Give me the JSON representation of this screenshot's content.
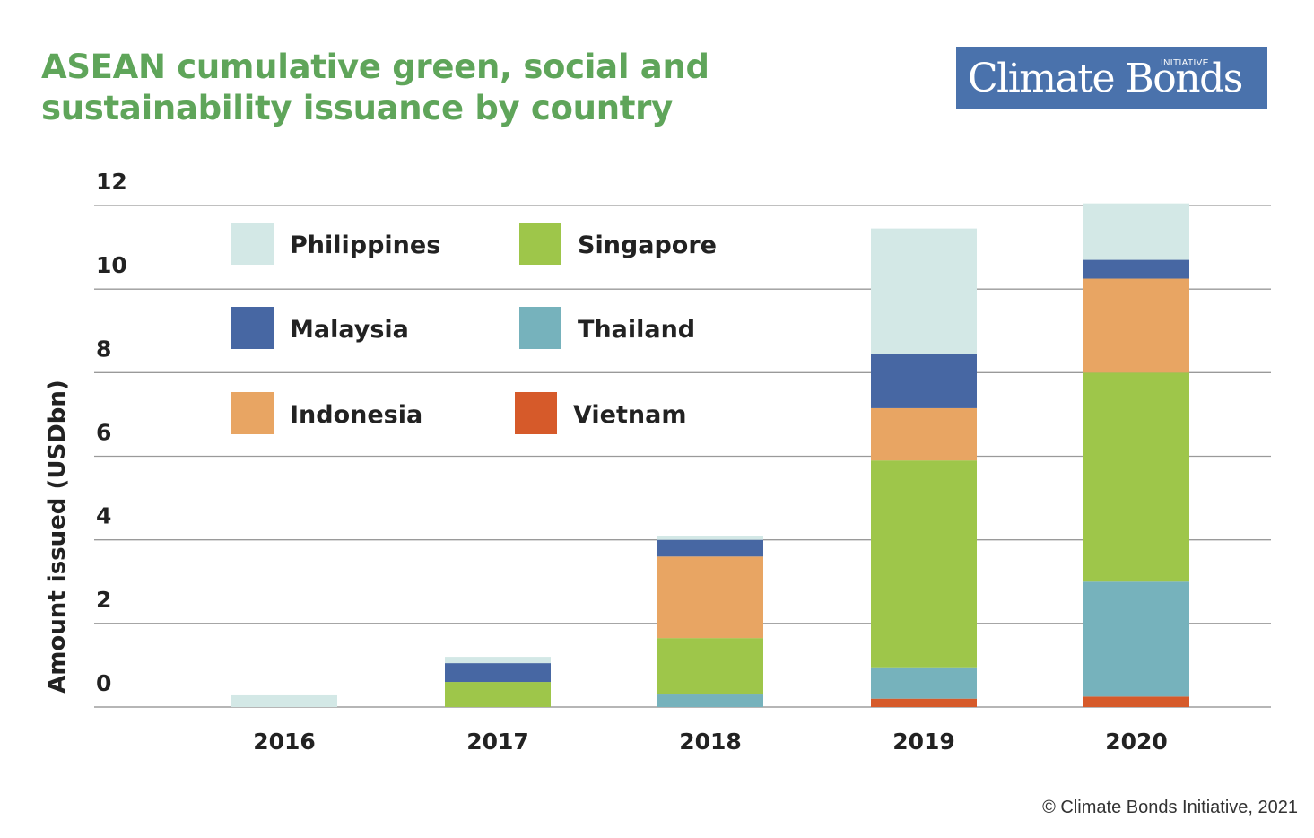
{
  "title_line1": "ASEAN cumulative green, social and",
  "title_line2": "sustainability issuance by country",
  "logo": {
    "main": "Climate Bonds",
    "small": "INITIATIVE"
  },
  "copyright": "© Climate Bonds Initiative, 2021",
  "chart_data": {
    "type": "bar",
    "stacked": true,
    "categories": [
      "2016",
      "2017",
      "2018",
      "2019",
      "2020"
    ],
    "ylabel": "Amount issued (USDbn)",
    "ylim": [
      0,
      12
    ],
    "yticks": [
      0,
      2,
      4,
      6,
      8,
      10,
      12
    ],
    "grid": true,
    "legend_position": "top-left",
    "series": [
      {
        "name": "Vietnam",
        "color": "#d65a2a",
        "values": [
          0,
          0,
          0,
          0.2,
          0.25
        ]
      },
      {
        "name": "Thailand",
        "color": "#76b2bc",
        "values": [
          0,
          0,
          0.3,
          0.75,
          2.75
        ]
      },
      {
        "name": "Singapore",
        "color": "#9ec64a",
        "values": [
          0,
          0.6,
          1.35,
          4.95,
          5.0
        ]
      },
      {
        "name": "Indonesia",
        "color": "#e8a563",
        "values": [
          0,
          0,
          1.95,
          1.25,
          2.25
        ]
      },
      {
        "name": "Malaysia",
        "color": "#4767a3",
        "values": [
          0,
          0.45,
          0.4,
          1.3,
          0.45
        ]
      },
      {
        "name": "Philippines",
        "color": "#d3e8e6",
        "values": [
          0.28,
          0.15,
          0.1,
          3.0,
          1.35
        ]
      }
    ],
    "legend_order": [
      "Philippines",
      "Singapore",
      "Malaysia",
      "Thailand",
      "Indonesia",
      "Vietnam"
    ]
  }
}
